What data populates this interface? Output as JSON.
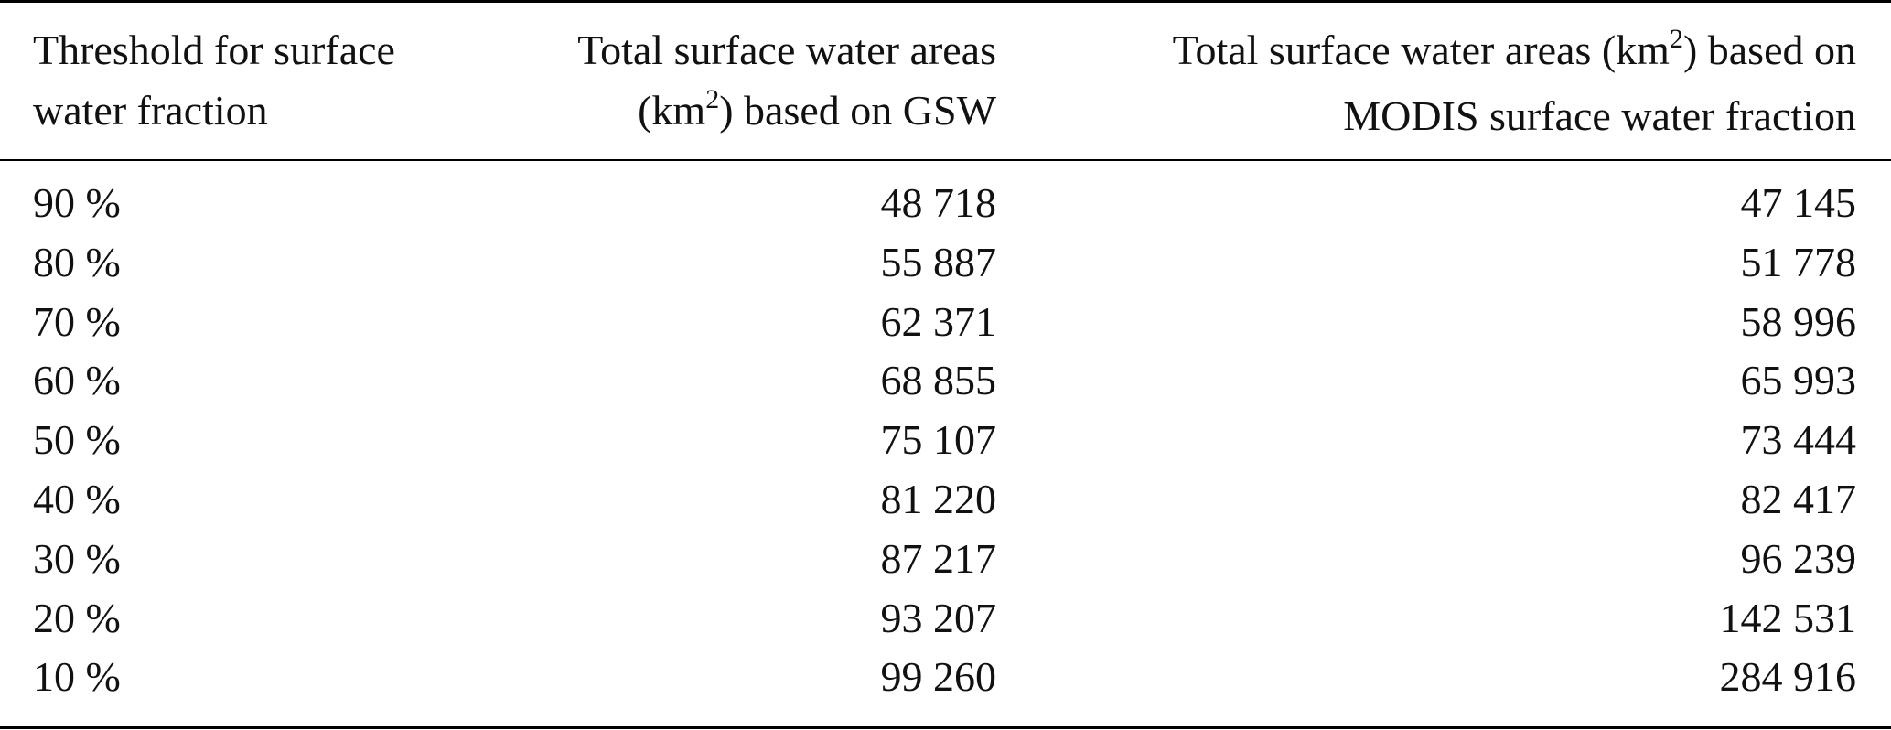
{
  "table": {
    "header": {
      "col1_line1": "Threshold for surface",
      "col1_line2": "water fraction",
      "col2_line1": "Total surface water areas",
      "col2_line2_pre": "(km",
      "col2_line2_sup": "2",
      "col2_line2_post": ") based on GSW",
      "col3_line1_pre": "Total surface water areas (km",
      "col3_line1_sup": "2",
      "col3_line1_post": ") based on",
      "col3_line2": "MODIS surface water fraction"
    },
    "rows": [
      {
        "threshold": "90 %",
        "gsw": "48 718",
        "modis": "47 145"
      },
      {
        "threshold": "80 %",
        "gsw": "55 887",
        "modis": "51 778"
      },
      {
        "threshold": "70 %",
        "gsw": "62 371",
        "modis": "58 996"
      },
      {
        "threshold": "60 %",
        "gsw": "68 855",
        "modis": "65 993"
      },
      {
        "threshold": "50 %",
        "gsw": "75 107",
        "modis": "73 444"
      },
      {
        "threshold": "40 %",
        "gsw": "81 220",
        "modis": "82 417"
      },
      {
        "threshold": "30 %",
        "gsw": "87 217",
        "modis": "96 239"
      },
      {
        "threshold": "20 %",
        "gsw": "93 207",
        "modis": "142 531"
      },
      {
        "threshold": "10 %",
        "gsw": "99 260",
        "modis": "284 916"
      }
    ]
  }
}
